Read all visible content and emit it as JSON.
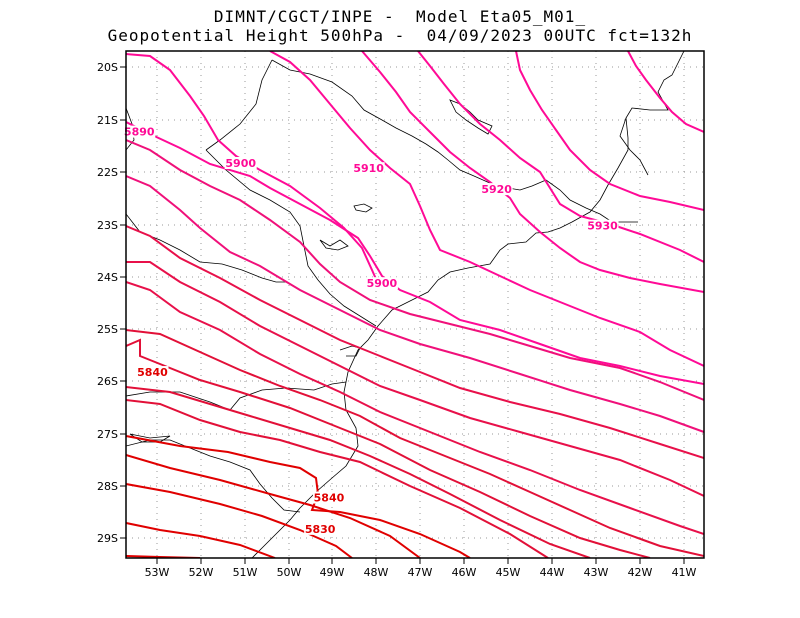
{
  "title": {
    "line1": "DIMNT/CGCT/INPE -  Model Eta05_M01_",
    "line2": "Geopotential Height 500hPa -  04/09/2023 00UTC fct=132h"
  },
  "map": {
    "lon_range": [
      -53.6,
      -40.5
    ],
    "lat_range": [
      -29.4,
      -19.7
    ],
    "lat_ticks": [
      "20S",
      "21S",
      "22S",
      "23S",
      "24S",
      "25S",
      "26S",
      "27S",
      "28S",
      "29S"
    ],
    "lon_ticks": [
      "53W",
      "52W",
      "51W",
      "50W",
      "49W",
      "48W",
      "47W",
      "46W",
      "45W",
      "44W",
      "43W",
      "42W",
      "41W"
    ],
    "grid": "dotted",
    "colors": {
      "coast": "#000000",
      "grid": "#999999",
      "low": "#e00000",
      "mid": "#e8104a",
      "high": "#ff0a96"
    }
  },
  "contours": {
    "labels": [
      {
        "text": "5890",
        "lon": -53.3,
        "lat": -21.3
      },
      {
        "text": "5900",
        "lon": -51.0,
        "lat": -21.9
      },
      {
        "text": "5910",
        "lon": -48.1,
        "lat": -22.0
      },
      {
        "text": "5920",
        "lon": -45.2,
        "lat": -22.4
      },
      {
        "text": "5930",
        "lon": -42.8,
        "lat": -23.1
      },
      {
        "text": "5900",
        "lon": -47.8,
        "lat": -24.2
      },
      {
        "text": "5840",
        "lon": -53.0,
        "lat": -25.9
      },
      {
        "text": "5840",
        "lon": -49.0,
        "lat": -28.3
      },
      {
        "text": "5830",
        "lon": -49.2,
        "lat": -28.9
      }
    ]
  }
}
